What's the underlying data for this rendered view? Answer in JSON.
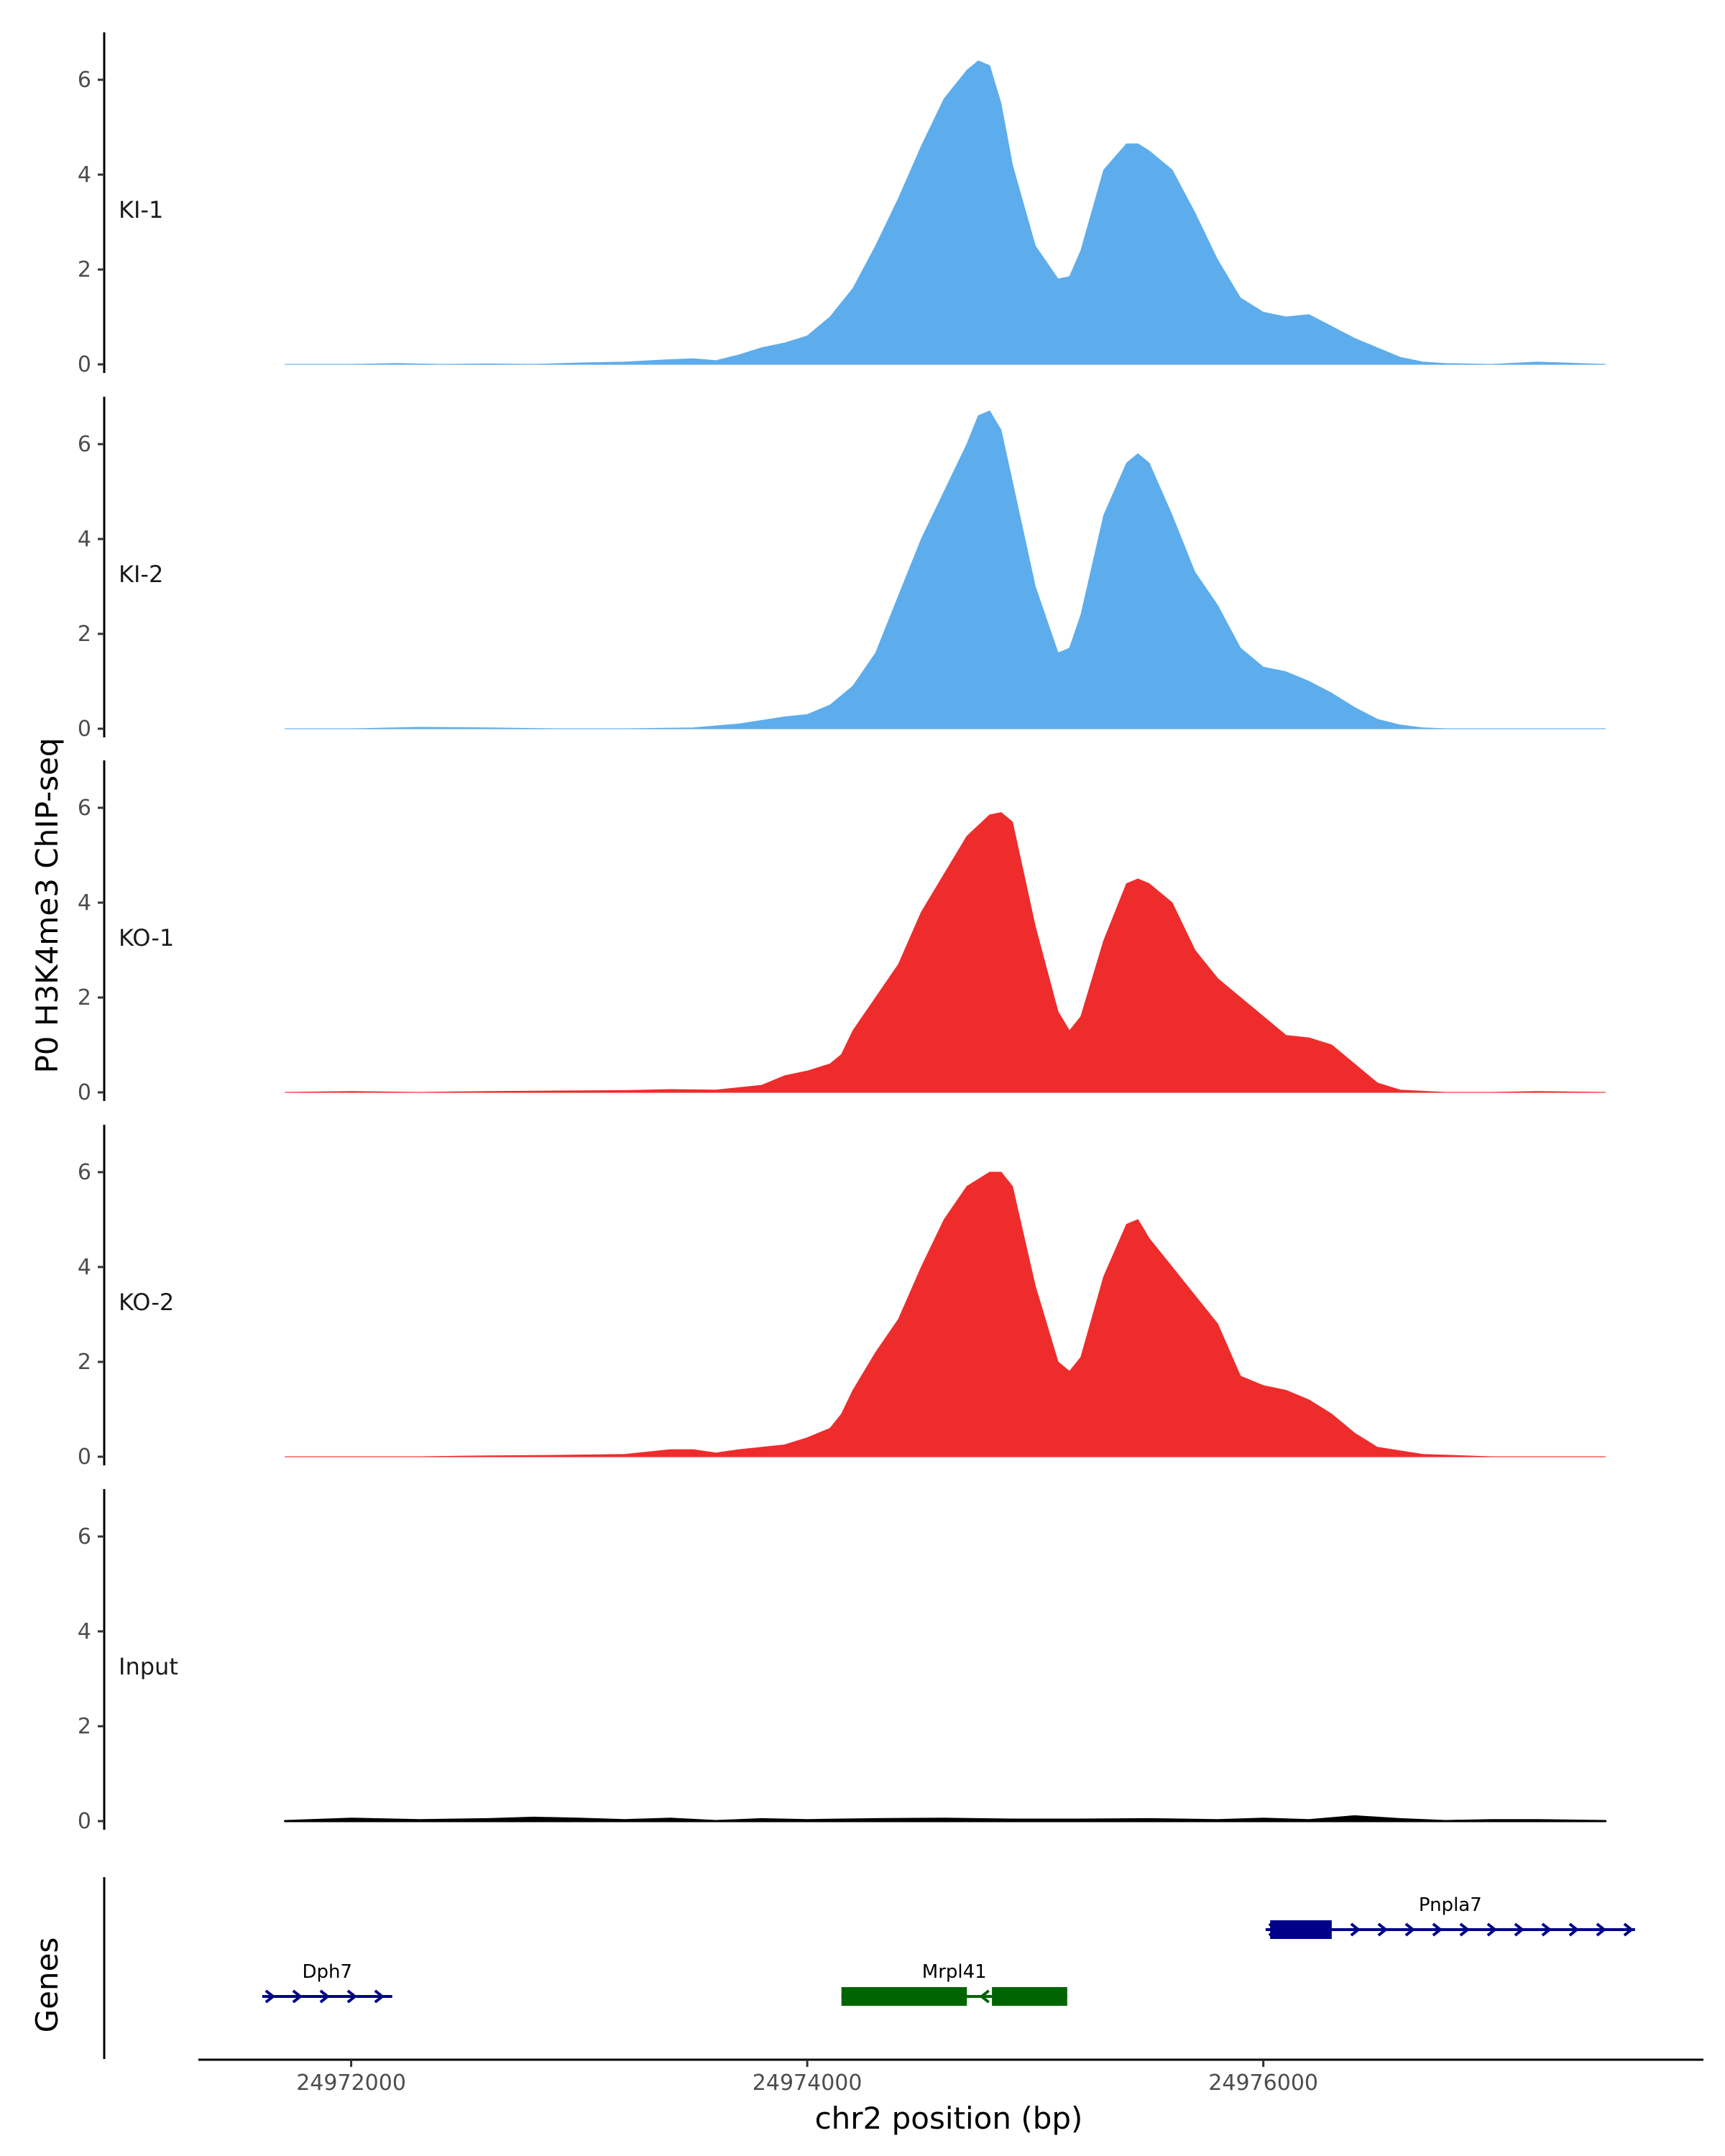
{
  "chart_data": {
    "type": "area",
    "ylabel": "P0 H3K4me3 ChIP-seq",
    "xlabel": "chr2 position (bp)",
    "genes_label": "Genes",
    "ylim": [
      0,
      7
    ],
    "yticks": [
      0,
      2,
      4,
      6
    ],
    "xlim": [
      24971330,
      24977930
    ],
    "xticks": [
      24972000,
      24974000,
      24976000
    ],
    "xtick_labels": [
      "24972000",
      "24974000",
      "24976000"
    ],
    "tracks": [
      {
        "name": "KI-1",
        "color": "#5DADEC",
        "x": [
          24971710,
          24972000,
          24972200,
          24972400,
          24972600,
          24972800,
          24973000,
          24973200,
          24973400,
          24973500,
          24973600,
          24973700,
          24973800,
          24973900,
          24974000,
          24974100,
          24974200,
          24974300,
          24974400,
          24974500,
          24974600,
          24974700,
          24974750,
          24974800,
          24974850,
          24974900,
          24975000,
          24975100,
          24975150,
          24975200,
          24975300,
          24975400,
          24975450,
          24975500,
          24975600,
          24975700,
          24975800,
          24975900,
          24976000,
          24976100,
          24976200,
          24976300,
          24976400,
          24976500,
          24976600,
          24976700,
          24976800,
          24977000,
          24977200,
          24977500
        ],
        "values": [
          0.0,
          0.0,
          0.02,
          0.0,
          0.01,
          0.0,
          0.03,
          0.05,
          0.1,
          0.12,
          0.08,
          0.2,
          0.35,
          0.45,
          0.6,
          1.0,
          1.6,
          2.5,
          3.5,
          4.6,
          5.6,
          6.2,
          6.4,
          6.3,
          5.5,
          4.2,
          2.5,
          1.8,
          1.85,
          2.4,
          4.1,
          4.65,
          4.65,
          4.5,
          4.1,
          3.2,
          2.2,
          1.4,
          1.1,
          1.0,
          1.05,
          0.8,
          0.55,
          0.35,
          0.15,
          0.05,
          0.02,
          0.0,
          0.05,
          0.0
        ]
      },
      {
        "name": "KI-2",
        "color": "#5DADEC",
        "x": [
          24971710,
          24972000,
          24972300,
          24972600,
          24972900,
          24973200,
          24973500,
          24973700,
          24973900,
          24974000,
          24974100,
          24974200,
          24974300,
          24974400,
          24974500,
          24974600,
          24974700,
          24974750,
          24974800,
          24974850,
          24974900,
          24975000,
          24975100,
          24975150,
          24975200,
          24975300,
          24975400,
          24975450,
          24975500,
          24975600,
          24975700,
          24975800,
          24975900,
          24976000,
          24976100,
          24976200,
          24976300,
          24976400,
          24976500,
          24976600,
          24976700,
          24976800,
          24977000,
          24977200,
          24977500
        ],
        "values": [
          0.0,
          0.0,
          0.03,
          0.02,
          0.0,
          0.0,
          0.02,
          0.1,
          0.25,
          0.3,
          0.5,
          0.9,
          1.6,
          2.8,
          4.0,
          5.0,
          6.0,
          6.6,
          6.7,
          6.3,
          5.2,
          3.0,
          1.6,
          1.7,
          2.4,
          4.5,
          5.6,
          5.8,
          5.6,
          4.5,
          3.3,
          2.6,
          1.7,
          1.3,
          1.2,
          1.0,
          0.75,
          0.45,
          0.2,
          0.08,
          0.02,
          0.0,
          0.0,
          0.0,
          0.0
        ]
      },
      {
        "name": "KO-1",
        "color": "#EE2C2C",
        "x": [
          24971710,
          24972000,
          24972300,
          24972600,
          24972900,
          24973200,
          24973400,
          24973600,
          24973800,
          24973900,
          24974000,
          24974100,
          24974150,
          24974200,
          24974300,
          24974400,
          24974500,
          24974600,
          24974700,
          24974800,
          24974850,
          24974900,
          24975000,
          24975100,
          24975150,
          24975200,
          24975300,
          24975400,
          24975450,
          24975500,
          24975600,
          24975700,
          24975800,
          24975900,
          24976000,
          24976100,
          24976200,
          24976300,
          24976400,
          24976500,
          24976600,
          24976800,
          24977000,
          24977200,
          24977500
        ],
        "values": [
          0.0,
          0.02,
          0.0,
          0.02,
          0.03,
          0.04,
          0.06,
          0.05,
          0.15,
          0.35,
          0.45,
          0.6,
          0.8,
          1.3,
          2.0,
          2.7,
          3.8,
          4.6,
          5.4,
          5.85,
          5.9,
          5.7,
          3.5,
          1.7,
          1.3,
          1.6,
          3.2,
          4.4,
          4.5,
          4.4,
          4.0,
          3.0,
          2.4,
          2.0,
          1.6,
          1.2,
          1.15,
          1.0,
          0.6,
          0.2,
          0.05,
          0.0,
          0.0,
          0.02,
          0.0
        ]
      },
      {
        "name": "KO-2",
        "color": "#EE2C2C",
        "x": [
          24971710,
          24972000,
          24972300,
          24972600,
          24972900,
          24973200,
          24973400,
          24973500,
          24973600,
          24973700,
          24973900,
          24974000,
          24974100,
          24974150,
          24974200,
          24974300,
          24974400,
          24974500,
          24974600,
          24974700,
          24974800,
          24974850,
          24974900,
          24975000,
          24975100,
          24975150,
          24975200,
          24975300,
          24975400,
          24975450,
          24975500,
          24975600,
          24975700,
          24975800,
          24975900,
          24976000,
          24976100,
          24976200,
          24976300,
          24976400,
          24976500,
          24976700,
          24977000,
          24977200,
          24977500
        ],
        "values": [
          0.0,
          0.0,
          0.0,
          0.02,
          0.03,
          0.05,
          0.15,
          0.15,
          0.08,
          0.15,
          0.25,
          0.4,
          0.6,
          0.9,
          1.4,
          2.2,
          2.9,
          4.0,
          5.0,
          5.7,
          6.0,
          6.0,
          5.7,
          3.6,
          2.0,
          1.8,
          2.1,
          3.8,
          4.9,
          5.0,
          4.6,
          4.0,
          3.4,
          2.8,
          1.7,
          1.5,
          1.4,
          1.2,
          0.9,
          0.5,
          0.2,
          0.05,
          0.0,
          0.0,
          0.0
        ]
      },
      {
        "name": "Input",
        "color": "#000000",
        "x": [
          24971710,
          24972000,
          24972300,
          24972600,
          24972800,
          24973000,
          24973200,
          24973400,
          24973600,
          24973800,
          24974000,
          24974300,
          24974600,
          24974900,
          24975200,
          24975500,
          24975800,
          24976000,
          24976200,
          24976400,
          24976600,
          24976800,
          24977000,
          24977200,
          24977500
        ],
        "values": [
          0.0,
          0.05,
          0.02,
          0.04,
          0.07,
          0.05,
          0.02,
          0.05,
          0.0,
          0.04,
          0.02,
          0.04,
          0.05,
          0.03,
          0.03,
          0.04,
          0.02,
          0.05,
          0.02,
          0.1,
          0.04,
          0.0,
          0.02,
          0.02,
          0.0
        ]
      }
    ],
    "genes": [
      {
        "name": "Dph7",
        "start": 24971610,
        "end": 24972180,
        "strand": "+",
        "color": "#00008B",
        "exons": [],
        "row": 1
      },
      {
        "name": "Mrpl41",
        "start": 24974150,
        "end": 24975140,
        "strand": "-",
        "color": "#006400",
        "exons": [
          [
            24974150,
            24974700
          ],
          [
            24974810,
            24975140
          ]
        ],
        "row": 1
      },
      {
        "name": "Pnpla7",
        "start": 24976010,
        "end": 24977630,
        "strand": "+",
        "color": "#00008B",
        "exons": [
          [
            24976030,
            24976300
          ]
        ],
        "row": 0
      }
    ]
  }
}
